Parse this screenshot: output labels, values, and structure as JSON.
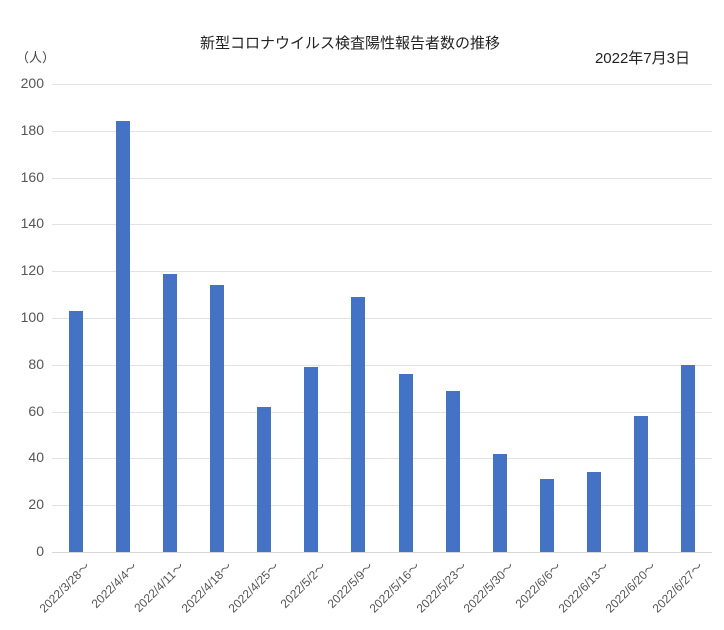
{
  "header": {
    "title": "新型コロナウイルス検査陽性報告者数の推移",
    "date": "2022年7月3日",
    "unit": "（人）"
  },
  "colors": {
    "bar": "#4472c4",
    "grid": "#e2e2e2"
  },
  "chart_data": {
    "type": "bar",
    "title": "新型コロナウイルス検査陽性報告者数の推移",
    "subtitle": "2022年7月3日",
    "xlabel": "",
    "ylabel": "（人）",
    "ylim": [
      0,
      200
    ],
    "yticks": [
      0,
      20,
      40,
      60,
      80,
      100,
      120,
      140,
      160,
      180,
      200
    ],
    "grid": true,
    "legend": null,
    "categories": [
      "2022/3/28～",
      "2022/4/4～",
      "2022/4/11～",
      "2022/4/18～",
      "2022/4/25～",
      "2022/5/2～",
      "2022/5/9～",
      "2022/5/16～",
      "2022/5/23～",
      "2022/5/30～",
      "2022/6/6～",
      "2022/6/13～",
      "2022/6/20～",
      "2022/6/27～"
    ],
    "values": [
      103,
      184,
      119,
      114,
      62,
      79,
      109,
      76,
      69,
      42,
      31,
      34,
      58,
      80
    ]
  }
}
